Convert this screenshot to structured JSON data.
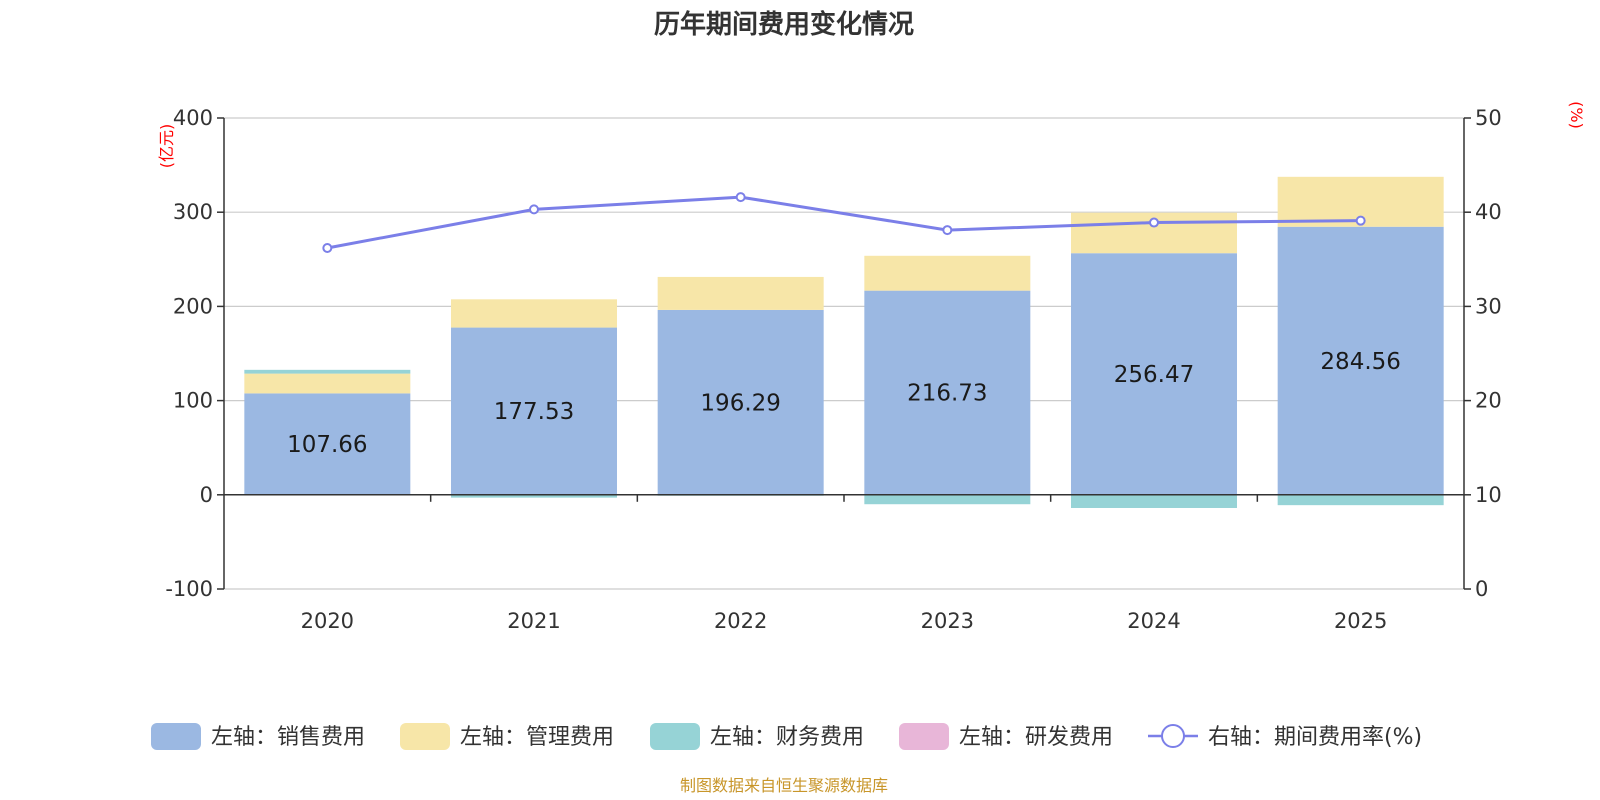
{
  "chart_data": {
    "type": "bar",
    "title": "历年期间费用变化情况",
    "categories": [
      "2020",
      "2021",
      "2022",
      "2023",
      "2024",
      "2025"
    ],
    "left_axis": {
      "unit": "(亿元)",
      "ylim": [
        -100,
        400
      ],
      "ticks": [
        -100,
        0,
        100,
        200,
        300,
        400
      ]
    },
    "right_axis": {
      "unit": "(%)",
      "ylim": [
        0,
        50
      ],
      "ticks": [
        0,
        10,
        20,
        30,
        40,
        50
      ]
    },
    "series": [
      {
        "name": "左轴：销售费用",
        "axis": "left",
        "kind": "bar",
        "color": "#9bb8e2",
        "values": [
          107.66,
          177.53,
          196.29,
          216.73,
          256.47,
          284.56
        ],
        "data_labels": [
          "107.66",
          "177.53",
          "196.29",
          "216.73",
          "256.47",
          "284.56"
        ]
      },
      {
        "name": "左轴：管理费用",
        "axis": "left",
        "kind": "bar",
        "color": "#f7e6a8",
        "values": [
          21,
          30,
          35,
          37,
          43,
          53
        ]
      },
      {
        "name": "左轴：财务费用",
        "axis": "left",
        "kind": "bar",
        "color": "#96d3d6",
        "values": [
          4,
          -3,
          -1,
          -10,
          -14,
          -11
        ]
      },
      {
        "name": "左轴：研发费用",
        "axis": "left",
        "kind": "bar",
        "color": "#e8b6d8",
        "values": [
          0,
          0,
          0,
          0,
          0,
          0
        ]
      },
      {
        "name": "右轴：期间费用率(%)",
        "axis": "right",
        "kind": "line",
        "color": "#7b7fe8",
        "values": [
          36.2,
          40.3,
          41.6,
          38.1,
          38.9,
          39.1
        ]
      }
    ],
    "grid": true,
    "legend_position": "bottom"
  },
  "source_note": "制图数据来自恒生聚源数据库",
  "colors": {
    "left_unit": "#ff0000",
    "right_unit": "#ff0000",
    "source": "#c8962a",
    "axis": "#333333",
    "grid": "#cccccc"
  }
}
